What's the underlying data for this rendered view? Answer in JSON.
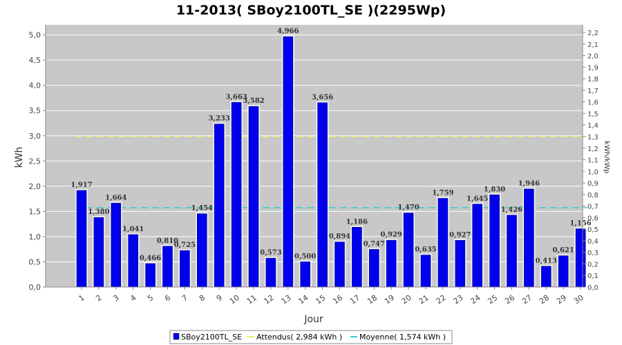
{
  "chart_data": {
    "type": "bar",
    "title": "11-2013( SBoy2100TL_SE )(2295Wp)",
    "xlabel": "Jour",
    "ylabel": "kWh",
    "y2label": "kWh/kWp",
    "ylim": [
      0,
      5.2
    ],
    "y2lim": [
      0,
      2.266
    ],
    "grid": true,
    "legend_position": "bottom",
    "categories": [
      "1",
      "2",
      "3",
      "4",
      "5",
      "6",
      "7",
      "8",
      "9",
      "10",
      "11",
      "12",
      "13",
      "14",
      "15",
      "16",
      "17",
      "18",
      "19",
      "20",
      "21",
      "22",
      "23",
      "24",
      "25",
      "26",
      "27",
      "28",
      "29",
      "30"
    ],
    "y_ticks": [
      "0,0",
      "0,5",
      "1,0",
      "1,5",
      "2,0",
      "2,5",
      "3,0",
      "3,5",
      "4,0",
      "4,5",
      "5,0"
    ],
    "y2_ticks": [
      "0,0",
      "0,1",
      "0,2",
      "0,3",
      "0,4",
      "0,5",
      "0,6",
      "0,7",
      "0,8",
      "0,9",
      "1,0",
      "1,1",
      "1,2",
      "1,3",
      "1,4",
      "1,5",
      "1,6",
      "1,7",
      "1,8",
      "1,9",
      "2,0",
      "2,1",
      "2,2"
    ],
    "series": [
      {
        "name": "SBoy2100TL_SE",
        "color": "#0000ee",
        "values": [
          1.917,
          1.38,
          1.664,
          1.041,
          0.466,
          0.81,
          0.725,
          1.454,
          3.233,
          3.663,
          3.582,
          0.573,
          4.966,
          0.5,
          3.656,
          0.894,
          1.186,
          0.747,
          0.929,
          1.47,
          0.635,
          1.759,
          0.927,
          1.645,
          1.83,
          1.426,
          1.946,
          0.413,
          0.621,
          1.156
        ],
        "labels": [
          "1,917",
          "1,380",
          "1,664",
          "1,041",
          "0,466",
          "0,810",
          "0,725",
          "1,454",
          "3,233",
          "3,663",
          "3,582",
          "0,573",
          "4,966",
          "0,500",
          "3,656",
          "0,894",
          "1,186",
          "0,747",
          "0,929",
          "1,470",
          "0,635",
          "1,759",
          "0,927",
          "1,645",
          "1,830",
          "1,426",
          "1,946",
          "0,413",
          "0,621",
          "1,156"
        ]
      }
    ],
    "reference_lines": [
      {
        "name": "Attendus( 2,984 kWh )",
        "value": 2.984,
        "color": "#eeee66"
      },
      {
        "name": "Moyenne( 1,574 kWh )",
        "value": 1.574,
        "color": "#33cccc"
      }
    ]
  }
}
